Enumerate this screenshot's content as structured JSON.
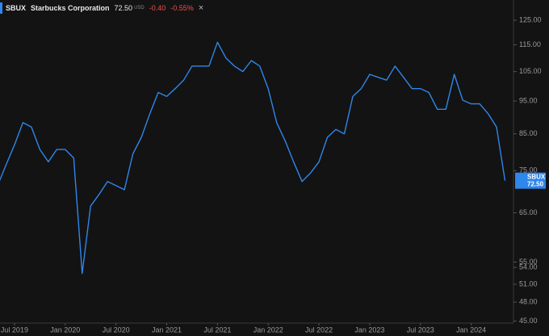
{
  "header": {
    "symbol": "SBUX",
    "name": "Starbucks Corporation",
    "price": "72.50",
    "currency": "USD",
    "change": "-0.40",
    "change_pct": "-0.55%",
    "close": "×"
  },
  "badge": {
    "symbol": "SBUX",
    "price": "72.50"
  },
  "chart_data": {
    "type": "line",
    "color": "#2f86eb",
    "log_scale": true,
    "x": [
      "2019-05",
      "2019-06",
      "2019-07",
      "2019-08",
      "2019-09",
      "2019-10",
      "2019-11",
      "2019-12",
      "2020-01",
      "2020-02",
      "2020-03",
      "2020-04",
      "2020-05",
      "2020-06",
      "2020-07",
      "2020-08",
      "2020-09",
      "2020-10",
      "2020-11",
      "2020-12",
      "2021-01",
      "2021-02",
      "2021-03",
      "2021-04",
      "2021-05",
      "2021-06",
      "2021-07",
      "2021-08",
      "2021-09",
      "2021-10",
      "2021-11",
      "2021-12",
      "2022-01",
      "2022-02",
      "2022-03",
      "2022-04",
      "2022-05",
      "2022-06",
      "2022-07",
      "2022-08",
      "2022-09",
      "2022-10",
      "2022-11",
      "2022-12",
      "2023-01",
      "2023-02",
      "2023-03",
      "2023-04",
      "2023-05",
      "2023-06",
      "2023-07",
      "2023-08",
      "2023-09",
      "2023-10",
      "2023-11",
      "2023-12",
      "2024-01",
      "2024-02",
      "2024-03",
      "2024-04",
      "2024-05"
    ],
    "values": [
      71.3,
      76.5,
      81.9,
      88.3,
      87.0,
      80.6,
      77.3,
      80.6,
      80.6,
      78.3,
      52.9,
      66.5,
      69.2,
      72.3,
      71.3,
      70.3,
      79.4,
      84.0,
      91.0,
      97.8,
      96.5,
      99.1,
      102,
      107,
      107,
      107,
      116,
      110,
      107,
      105,
      109,
      107,
      99.1,
      88.3,
      83.0,
      77.3,
      72.3,
      74.4,
      77.3,
      84.0,
      86.3,
      85.0,
      96.5,
      99.1,
      104,
      103,
      102,
      107,
      103,
      99.1,
      99.1,
      97.8,
      92.4,
      92.4,
      104,
      95.3,
      94.1,
      94.1,
      91.0,
      87.0,
      72.5
    ],
    "xlim": [
      "2019-05",
      "2024-06"
    ],
    "xticks": [
      {
        "value": "2019-07",
        "label": "Jul 2019"
      },
      {
        "value": "2020-01",
        "label": "Jan 2020"
      },
      {
        "value": "2020-07",
        "label": "Jul 2020"
      },
      {
        "value": "2021-01",
        "label": "Jan 2021"
      },
      {
        "value": "2021-07",
        "label": "Jul 2021"
      },
      {
        "value": "2022-01",
        "label": "Jan 2022"
      },
      {
        "value": "2022-07",
        "label": "Jul 2022"
      },
      {
        "value": "2023-01",
        "label": "Jan 2023"
      },
      {
        "value": "2023-07",
        "label": "Jul 2023"
      },
      {
        "value": "2024-01",
        "label": "Jan 2024"
      }
    ],
    "ylim": [
      44.7,
      133.9
    ],
    "yticks": [
      {
        "value": 125,
        "label": "125.00"
      },
      {
        "value": 115,
        "label": "115.00"
      },
      {
        "value": 105,
        "label": "105.00"
      },
      {
        "value": 95,
        "label": "95.00"
      },
      {
        "value": 85,
        "label": "85.00"
      },
      {
        "value": 75,
        "label": "75.00"
      },
      {
        "value": 65,
        "label": "65.00"
      },
      {
        "value": 55,
        "label": "55.00"
      },
      {
        "value": 54,
        "label": "54.00"
      },
      {
        "value": 51,
        "label": "51.00"
      },
      {
        "value": 48,
        "label": "48.00"
      },
      {
        "value": 45,
        "label": "45.00"
      }
    ]
  }
}
